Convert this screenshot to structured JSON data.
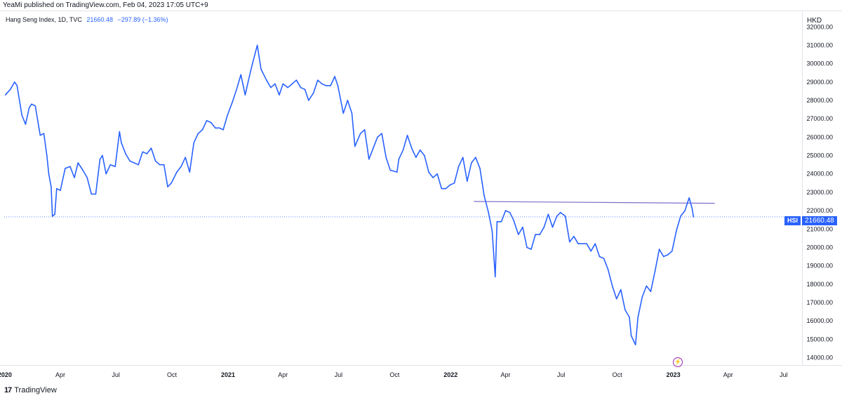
{
  "header": {
    "published": "YeaMi published on TradingView.com, Feb 04, 2023 17:05 UTC+9"
  },
  "legend": {
    "symbol": "Hang Seng Index, 1D, TVC",
    "last": "21660.48",
    "change": "−297.89 (−1.36%)"
  },
  "price_scale": {
    "currency": "HKD"
  },
  "price_tag": {
    "symbol": "HSI",
    "value": "21660.48"
  },
  "footer": {
    "brand": "TradingView",
    "logo": "17"
  },
  "colors": {
    "line": "#2962ff",
    "trendline": "#7b6fc9",
    "accent": "#2962ff",
    "flash": "#9c27b0"
  },
  "icons": {
    "flash": "lightning-bolt-icon"
  },
  "chart_data": {
    "type": "line",
    "title": "Hang Seng Index, 1D, TVC",
    "ylabel": "HKD",
    "ylim": [
      13600,
      32700
    ],
    "xlim": [
      "2019-12-31",
      "2023-07-31"
    ],
    "grid": false,
    "y_ticks": [
      14000,
      15000,
      16000,
      17000,
      18000,
      19000,
      20000,
      21000,
      22000,
      23000,
      24000,
      25000,
      26000,
      27000,
      28000,
      29000,
      30000,
      31000,
      32000
    ],
    "y_tick_labels": [
      "14000.00",
      "15000.00",
      "16000.00",
      "17000.00",
      "18000.00",
      "19000.00",
      "20000.00",
      "21000.00",
      "22000.00",
      "23000.00",
      "24000.00",
      "25000.00",
      "26000.00",
      "27000.00",
      "28000.00",
      "29000.00",
      "30000.00",
      "31000.00",
      "32000.00"
    ],
    "x_ticks": [
      {
        "date": "2020-01-01",
        "label": "2020",
        "bold": true
      },
      {
        "date": "2020-04-01",
        "label": "Apr",
        "bold": false
      },
      {
        "date": "2020-07-01",
        "label": "Jul",
        "bold": false
      },
      {
        "date": "2020-10-01",
        "label": "Oct",
        "bold": false
      },
      {
        "date": "2021-01-01",
        "label": "2021",
        "bold": true
      },
      {
        "date": "2021-04-01",
        "label": "Apr",
        "bold": false
      },
      {
        "date": "2021-07-01",
        "label": "Jul",
        "bold": false
      },
      {
        "date": "2021-10-01",
        "label": "Oct",
        "bold": false
      },
      {
        "date": "2022-01-01",
        "label": "2022",
        "bold": true
      },
      {
        "date": "2022-04-01",
        "label": "Apr",
        "bold": false
      },
      {
        "date": "2022-07-01",
        "label": "Jul",
        "bold": false
      },
      {
        "date": "2022-10-01",
        "label": "Oct",
        "bold": false
      },
      {
        "date": "2023-01-01",
        "label": "2023",
        "bold": true
      },
      {
        "date": "2023-04-01",
        "label": "Apr",
        "bold": false
      },
      {
        "date": "2023-07-01",
        "label": "Jul",
        "bold": false
      }
    ],
    "series": [
      {
        "name": "HSI",
        "points": [
          [
            "2020-01-02",
            28300
          ],
          [
            "2020-01-10",
            28600
          ],
          [
            "2020-01-17",
            29000
          ],
          [
            "2020-01-21",
            28800
          ],
          [
            "2020-01-29",
            27200
          ],
          [
            "2020-02-04",
            26700
          ],
          [
            "2020-02-10",
            27600
          ],
          [
            "2020-02-14",
            27800
          ],
          [
            "2020-02-20",
            27700
          ],
          [
            "2020-02-28",
            26100
          ],
          [
            "2020-03-05",
            26200
          ],
          [
            "2020-03-10",
            25000
          ],
          [
            "2020-03-13",
            24000
          ],
          [
            "2020-03-17",
            23300
          ],
          [
            "2020-03-19",
            21700
          ],
          [
            "2020-03-23",
            21800
          ],
          [
            "2020-03-26",
            23200
          ],
          [
            "2020-04-01",
            23100
          ],
          [
            "2020-04-09",
            24300
          ],
          [
            "2020-04-17",
            24400
          ],
          [
            "2020-04-24",
            23800
          ],
          [
            "2020-04-30",
            24600
          ],
          [
            "2020-05-08",
            24200
          ],
          [
            "2020-05-15",
            23800
          ],
          [
            "2020-05-22",
            22900
          ],
          [
            "2020-05-29",
            22900
          ],
          [
            "2020-06-05",
            24800
          ],
          [
            "2020-06-09",
            25000
          ],
          [
            "2020-06-15",
            24000
          ],
          [
            "2020-06-22",
            24500
          ],
          [
            "2020-06-30",
            24400
          ],
          [
            "2020-07-07",
            26300
          ],
          [
            "2020-07-10",
            25700
          ],
          [
            "2020-07-17",
            25100
          ],
          [
            "2020-07-24",
            24700
          ],
          [
            "2020-07-31",
            24600
          ],
          [
            "2020-08-07",
            24500
          ],
          [
            "2020-08-14",
            25200
          ],
          [
            "2020-08-21",
            25100
          ],
          [
            "2020-08-28",
            25400
          ],
          [
            "2020-09-04",
            24700
          ],
          [
            "2020-09-11",
            24500
          ],
          [
            "2020-09-18",
            24500
          ],
          [
            "2020-09-24",
            23300
          ],
          [
            "2020-09-30",
            23500
          ],
          [
            "2020-10-09",
            24100
          ],
          [
            "2020-10-16",
            24400
          ],
          [
            "2020-10-23",
            24900
          ],
          [
            "2020-10-30",
            24100
          ],
          [
            "2020-11-06",
            25700
          ],
          [
            "2020-11-13",
            26200
          ],
          [
            "2020-11-20",
            26400
          ],
          [
            "2020-11-27",
            26900
          ],
          [
            "2020-12-04",
            26800
          ],
          [
            "2020-12-11",
            26500
          ],
          [
            "2020-12-18",
            26500
          ],
          [
            "2020-12-24",
            26400
          ],
          [
            "2020-12-31",
            27200
          ],
          [
            "2021-01-08",
            27900
          ],
          [
            "2021-01-15",
            28600
          ],
          [
            "2021-01-22",
            29400
          ],
          [
            "2021-01-29",
            28300
          ],
          [
            "2021-02-05",
            29300
          ],
          [
            "2021-02-10",
            30000
          ],
          [
            "2021-02-18",
            31000
          ],
          [
            "2021-02-24",
            29700
          ],
          [
            "2021-03-05",
            29100
          ],
          [
            "2021-03-12",
            28700
          ],
          [
            "2021-03-19",
            28900
          ],
          [
            "2021-03-26",
            28300
          ],
          [
            "2021-04-01",
            28900
          ],
          [
            "2021-04-09",
            28700
          ],
          [
            "2021-04-16",
            28900
          ],
          [
            "2021-04-23",
            29100
          ],
          [
            "2021-04-30",
            28700
          ],
          [
            "2021-05-07",
            28600
          ],
          [
            "2021-05-13",
            28000
          ],
          [
            "2021-05-21",
            28400
          ],
          [
            "2021-05-28",
            29100
          ],
          [
            "2021-06-04",
            28900
          ],
          [
            "2021-06-11",
            28800
          ],
          [
            "2021-06-18",
            28800
          ],
          [
            "2021-06-25",
            29300
          ],
          [
            "2021-06-30",
            28800
          ],
          [
            "2021-07-09",
            27300
          ],
          [
            "2021-07-16",
            28000
          ],
          [
            "2021-07-23",
            27300
          ],
          [
            "2021-07-28",
            25500
          ],
          [
            "2021-08-06",
            26200
          ],
          [
            "2021-08-13",
            26400
          ],
          [
            "2021-08-20",
            24800
          ],
          [
            "2021-08-27",
            25400
          ],
          [
            "2021-09-03",
            26000
          ],
          [
            "2021-09-10",
            26200
          ],
          [
            "2021-09-17",
            24900
          ],
          [
            "2021-09-24",
            24200
          ],
          [
            "2021-10-05",
            24100
          ],
          [
            "2021-10-08",
            24800
          ],
          [
            "2021-10-15",
            25300
          ],
          [
            "2021-10-22",
            26100
          ],
          [
            "2021-10-29",
            25400
          ],
          [
            "2021-11-05",
            24900
          ],
          [
            "2021-11-12",
            25300
          ],
          [
            "2021-11-19",
            25000
          ],
          [
            "2021-11-26",
            24100
          ],
          [
            "2021-12-03",
            23800
          ],
          [
            "2021-12-10",
            24000
          ],
          [
            "2021-12-17",
            23200
          ],
          [
            "2021-12-24",
            23200
          ],
          [
            "2021-12-31",
            23400
          ],
          [
            "2022-01-07",
            23500
          ],
          [
            "2022-01-14",
            24400
          ],
          [
            "2022-01-21",
            24900
          ],
          [
            "2022-01-28",
            23600
          ],
          [
            "2022-02-04",
            24600
          ],
          [
            "2022-02-11",
            24900
          ],
          [
            "2022-02-18",
            24300
          ],
          [
            "2022-02-25",
            22800
          ],
          [
            "2022-03-04",
            21900
          ],
          [
            "2022-03-10",
            20900
          ],
          [
            "2022-03-15",
            18400
          ],
          [
            "2022-03-18",
            21400
          ],
          [
            "2022-03-25",
            21400
          ],
          [
            "2022-04-01",
            22000
          ],
          [
            "2022-04-08",
            21900
          ],
          [
            "2022-04-14",
            21500
          ],
          [
            "2022-04-22",
            20700
          ],
          [
            "2022-04-29",
            21100
          ],
          [
            "2022-05-06",
            20000
          ],
          [
            "2022-05-13",
            19900
          ],
          [
            "2022-05-20",
            20700
          ],
          [
            "2022-05-27",
            20700
          ],
          [
            "2022-06-03",
            21100
          ],
          [
            "2022-06-10",
            21800
          ],
          [
            "2022-06-17",
            21100
          ],
          [
            "2022-06-24",
            21700
          ],
          [
            "2022-06-30",
            21900
          ],
          [
            "2022-07-08",
            21700
          ],
          [
            "2022-07-15",
            20300
          ],
          [
            "2022-07-22",
            20600
          ],
          [
            "2022-07-29",
            20200
          ],
          [
            "2022-08-05",
            20200
          ],
          [
            "2022-08-12",
            20200
          ],
          [
            "2022-08-19",
            19800
          ],
          [
            "2022-08-26",
            20200
          ],
          [
            "2022-09-02",
            19500
          ],
          [
            "2022-09-09",
            19400
          ],
          [
            "2022-09-16",
            18800
          ],
          [
            "2022-09-23",
            17900
          ],
          [
            "2022-09-30",
            17200
          ],
          [
            "2022-10-07",
            17700
          ],
          [
            "2022-10-14",
            16600
          ],
          [
            "2022-10-21",
            16200
          ],
          [
            "2022-10-24",
            15200
          ],
          [
            "2022-10-31",
            14700
          ],
          [
            "2022-11-04",
            16200
          ],
          [
            "2022-11-11",
            17300
          ],
          [
            "2022-11-18",
            17900
          ],
          [
            "2022-11-25",
            17600
          ],
          [
            "2022-12-02",
            18700
          ],
          [
            "2022-12-09",
            19900
          ],
          [
            "2022-12-16",
            19500
          ],
          [
            "2022-12-23",
            19600
          ],
          [
            "2022-12-30",
            19800
          ],
          [
            "2023-01-06",
            20900
          ],
          [
            "2023-01-13",
            21700
          ],
          [
            "2023-01-20",
            22000
          ],
          [
            "2023-01-27",
            22700
          ],
          [
            "2023-02-01",
            22100
          ],
          [
            "2023-02-03",
            21660
          ]
        ]
      }
    ],
    "trendline": {
      "start": [
        "2022-02-08",
        22500
      ],
      "end": [
        "2023-03-10",
        22400
      ]
    },
    "last_value": 21660.48
  }
}
